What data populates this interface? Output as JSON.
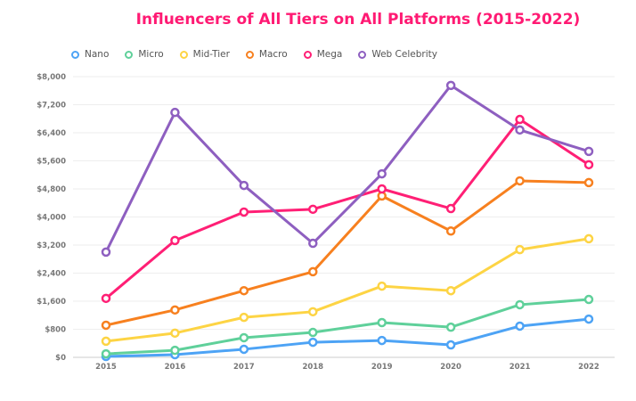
{
  "chart_data": {
    "type": "line",
    "title": "Influencers of All Tiers on All Platforms (2015-2022)",
    "xlabel": "",
    "ylabel": "",
    "categories": [
      "2015",
      "2016",
      "2017",
      "2018",
      "2019",
      "2020",
      "2021",
      "2022"
    ],
    "ylim": [
      0,
      8000
    ],
    "yticks": [
      "$0",
      "$800",
      "$1,600",
      "$2,400",
      "$3,200",
      "$4,000",
      "$4,800",
      "$5,600",
      "$6,400",
      "$7,200",
      "$8,000"
    ],
    "grid": true,
    "legend": "top-left",
    "series": [
      {
        "name": "Nano",
        "color": "#4da3f5",
        "values": [
          25,
          75,
          230,
          430,
          480,
          355,
          890,
          1090
        ]
      },
      {
        "name": "Micro",
        "color": "#5fd09a",
        "values": [
          100,
          200,
          560,
          710,
          990,
          860,
          1500,
          1650
        ]
      },
      {
        "name": "Mid-Tier",
        "color": "#fdd444",
        "values": [
          460,
          690,
          1140,
          1300,
          2030,
          1900,
          3070,
          3380
        ]
      },
      {
        "name": "Macro",
        "color": "#f7801f",
        "values": [
          915,
          1350,
          1900,
          2440,
          4600,
          3600,
          5030,
          4980
        ]
      },
      {
        "name": "Mega",
        "color": "#ff1f75",
        "values": [
          1680,
          3330,
          4140,
          4220,
          4800,
          4240,
          6780,
          5490
        ]
      },
      {
        "name": "Web Celebrity",
        "color": "#8e5fc0",
        "values": [
          3000,
          6980,
          4900,
          3250,
          5230,
          7750,
          6480,
          5870
        ]
      }
    ]
  }
}
